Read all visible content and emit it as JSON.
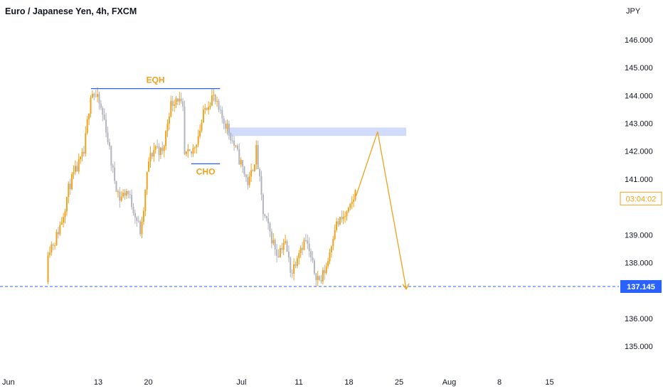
{
  "chart_data": {
    "type": "candlestick",
    "title": "Euro / Japanese Yen, 4h, FXCM",
    "currency": "JPY",
    "y_ticks": [
      "146.000",
      "145.000",
      "144.000",
      "143.000",
      "142.000",
      "141.000",
      "139.000",
      "138.000",
      "136.000",
      "135.000"
    ],
    "y_tick_values": [
      146,
      145,
      144,
      143,
      142,
      141,
      139,
      138,
      136,
      135
    ],
    "x_ticks": [
      "Jun",
      "13",
      "20",
      "Jul",
      "11",
      "18",
      "25",
      "Aug",
      "8",
      "15"
    ],
    "x_tick_dates": [
      "2023-06-06",
      "2023-06-13",
      "2023-06-20",
      "2023-07-03",
      "2023-07-11",
      "2023-07-18",
      "2023-07-25",
      "2023-08-01",
      "2023-08-08",
      "2023-08-15"
    ],
    "ylim": [
      134.4,
      147.0
    ],
    "grid": false,
    "price_path": [
      [
        "2023-06-06",
        137.3
      ],
      [
        "2023-06-06",
        138.5
      ],
      [
        "2023-06-07",
        138.8
      ],
      [
        "2023-06-08",
        139.6
      ],
      [
        "2023-06-09",
        140.8
      ],
      [
        "2023-06-11",
        141.9
      ],
      [
        "2023-06-12",
        144.2
      ],
      [
        "2023-06-13",
        143.8
      ],
      [
        "2023-06-14",
        143.0
      ],
      [
        "2023-06-15",
        141.3
      ],
      [
        "2023-06-16",
        140.3
      ],
      [
        "2023-06-17",
        140.6
      ],
      [
        "2023-06-18",
        139.9
      ],
      [
        "2023-06-19",
        139.0
      ],
      [
        "2023-06-20",
        141.6
      ],
      [
        "2023-06-21",
        142.2
      ],
      [
        "2023-06-22",
        141.9
      ],
      [
        "2023-06-23",
        143.6
      ],
      [
        "2023-06-24",
        144.0
      ],
      [
        "2023-06-25",
        143.3
      ],
      [
        "2023-06-25",
        141.8
      ],
      [
        "2023-06-26",
        141.9
      ],
      [
        "2023-06-27",
        142.6
      ],
      [
        "2023-06-28",
        143.6
      ],
      [
        "2023-06-29",
        144.0
      ],
      [
        "2023-06-30",
        143.3
      ],
      [
        "2023-07-01",
        142.9
      ],
      [
        "2023-07-02",
        142.2
      ],
      [
        "2023-07-04",
        140.8
      ],
      [
        "2023-07-05",
        141.9
      ],
      [
        "2023-07-05",
        142.2
      ],
      [
        "2023-07-06",
        139.8
      ],
      [
        "2023-07-08",
        138.3
      ],
      [
        "2023-07-09",
        138.8
      ],
      [
        "2023-07-10",
        137.6
      ],
      [
        "2023-07-11",
        138.5
      ],
      [
        "2023-07-12",
        138.8
      ],
      [
        "2023-07-13",
        137.8
      ],
      [
        "2023-07-14",
        137.3
      ],
      [
        "2023-07-15",
        138.0
      ],
      [
        "2023-07-16",
        139.3
      ],
      [
        "2023-07-18",
        139.8
      ],
      [
        "2023-07-19",
        140.6
      ],
      [
        "2023-07-19",
        140.3
      ]
    ],
    "annotations": {
      "eqh": {
        "label": "EQH",
        "price": 144.25,
        "from": "2023-06-12",
        "to": "2023-06-30"
      },
      "cho": {
        "label": "CHO",
        "price": 141.55,
        "from": "2023-06-26",
        "to": "2023-06-30"
      },
      "zone": {
        "from": "2023-07-01",
        "to": "2023-07-26",
        "low": 142.55,
        "high": 142.85
      },
      "projection": [
        [
          "2023-07-19",
          140.4
        ],
        [
          "2023-07-22",
          142.7
        ],
        [
          "2023-07-26",
          137.05
        ]
      ],
      "support": {
        "price": 137.145,
        "label": "137.145"
      }
    },
    "countdown": "03:04:02",
    "colors": {
      "up": "#f0a21b",
      "down": "#b2b5be",
      "line": "#2962ff",
      "zone": "#d1dbfb",
      "badge": "#2962ff"
    }
  }
}
